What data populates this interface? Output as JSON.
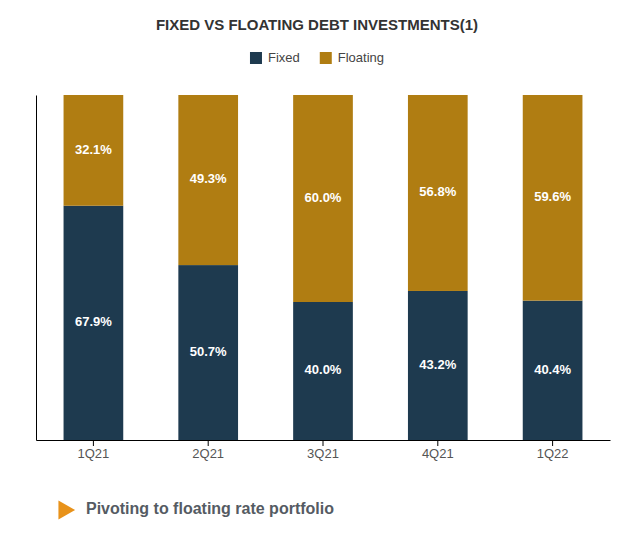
{
  "chart_data": {
    "type": "bar",
    "stacked": true,
    "title": "FIXED VS FLOATING DEBT INVESTMENTS(1)",
    "categories": [
      "1Q21",
      "2Q21",
      "3Q21",
      "4Q21",
      "1Q22"
    ],
    "series": [
      {
        "name": "Fixed",
        "color": "#1e3a4f",
        "values": [
          67.9,
          50.7,
          40.0,
          43.2,
          40.4
        ],
        "value_labels": [
          "67.9%",
          "50.7%",
          "40.0%",
          "43.2%",
          "40.4%"
        ]
      },
      {
        "name": "Floating",
        "color": "#b07d12",
        "values": [
          32.1,
          49.3,
          60.0,
          56.8,
          59.6
        ],
        "value_labels": [
          "32.1%",
          "49.3%",
          "60.0%",
          "56.8%",
          "59.6%"
        ]
      }
    ],
    "ylim": [
      0,
      100
    ],
    "tick_labels": "x",
    "data_labels": true,
    "grid": false,
    "legend": "top",
    "annotation": "Pivoting to floating rate portfolio"
  }
}
